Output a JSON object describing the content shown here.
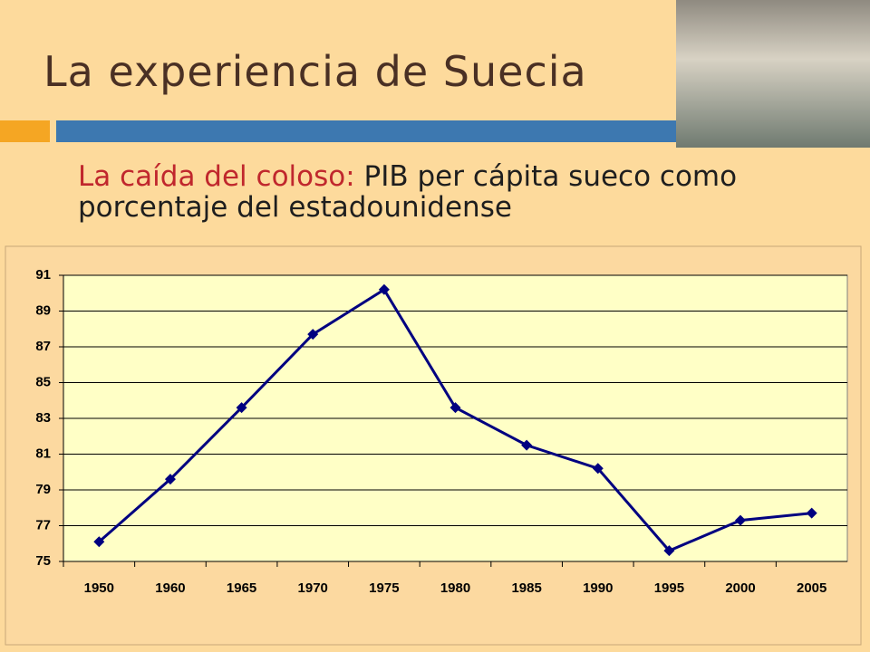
{
  "slide": {
    "title": "La experiencia de Suecia",
    "subtitle_highlight": "La caída del coloso:",
    "subtitle_rest": "PIB per cápita sueco como porcentaje del estadounidense"
  },
  "chart_data": {
    "type": "line",
    "categories": [
      "1950",
      "1960",
      "1965",
      "1970",
      "1975",
      "1980",
      "1985",
      "1990",
      "1995",
      "2000",
      "2005"
    ],
    "series": [
      {
        "name": "PIB per cápita sueco (% EE.UU.)",
        "color": "#000080",
        "values": [
          76.1,
          79.6,
          83.6,
          87.7,
          90.2,
          83.6,
          81.5,
          80.2,
          75.6,
          77.3,
          77.7
        ]
      }
    ],
    "ylim": [
      75,
      91
    ],
    "yticks": [
      75,
      77,
      79,
      81,
      83,
      85,
      87,
      89,
      91
    ],
    "grid": true
  }
}
